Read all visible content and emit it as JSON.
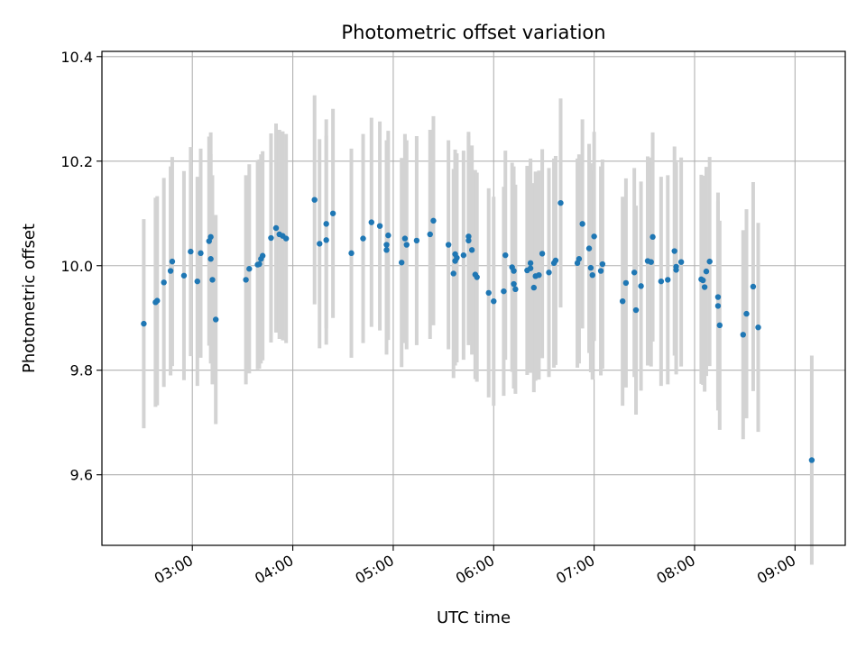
{
  "chart_data": {
    "type": "scatter",
    "title": "Photometric offset variation",
    "xlabel": "UTC time",
    "ylabel": "Photometric offset",
    "x_tick_labels": [
      "03:00",
      "04:00",
      "05:00",
      "06:00",
      "07:00",
      "08:00",
      "09:00"
    ],
    "x_tick_hours": [
      3,
      4,
      5,
      6,
      7,
      8,
      9
    ],
    "y_ticks": [
      9.6,
      9.8,
      10.0,
      10.2,
      10.4
    ],
    "y_tick_labels": [
      "9.6",
      "9.8",
      "10.0",
      "10.2",
      "10.4"
    ],
    "xlim_hours": [
      2.1,
      9.5
    ],
    "ylim": [
      9.465,
      10.41
    ],
    "grid": true,
    "x_tick_rotation_deg": 30,
    "colors": {
      "points": "#1f77b4",
      "errorbars": "#d3d3d3",
      "grid": "#b0b0b0",
      "axes": "#000000"
    },
    "series": [
      {
        "errorbar_halfwidth": 0.2,
        "points": [
          {
            "x": "02:31",
            "y": 9.889
          },
          {
            "x": "02:38",
            "y": 9.93
          },
          {
            "x": "02:39",
            "y": 9.933
          },
          {
            "x": "02:43",
            "y": 9.968
          },
          {
            "x": "02:47",
            "y": 9.99
          },
          {
            "x": "02:48",
            "y": 10.008
          },
          {
            "x": "02:55",
            "y": 9.981
          },
          {
            "x": "02:59",
            "y": 10.027
          },
          {
            "x": "03:03",
            "y": 9.97
          },
          {
            "x": "03:05",
            "y": 10.024
          },
          {
            "x": "03:10",
            "y": 10.047
          },
          {
            "x": "03:11",
            "y": 10.055
          },
          {
            "x": "03:11",
            "y": 10.013
          },
          {
            "x": "03:12",
            "y": 9.973
          },
          {
            "x": "03:14",
            "y": 9.897
          },
          {
            "x": "03:32",
            "y": 9.973
          },
          {
            "x": "03:34",
            "y": 9.994
          },
          {
            "x": "03:39",
            "y": 10.002
          },
          {
            "x": "03:40",
            "y": 10.003
          },
          {
            "x": "03:41",
            "y": 10.013
          },
          {
            "x": "03:42",
            "y": 10.019
          },
          {
            "x": "03:47",
            "y": 10.053
          },
          {
            "x": "03:50",
            "y": 10.072
          },
          {
            "x": "03:52",
            "y": 10.06
          },
          {
            "x": "03:54",
            "y": 10.057
          },
          {
            "x": "03:56",
            "y": 10.052
          },
          {
            "x": "04:13",
            "y": 10.126
          },
          {
            "x": "04:16",
            "y": 10.042
          },
          {
            "x": "04:20",
            "y": 10.049
          },
          {
            "x": "04:20",
            "y": 10.08
          },
          {
            "x": "04:24",
            "y": 10.1
          },
          {
            "x": "04:35",
            "y": 10.024
          },
          {
            "x": "04:42",
            "y": 10.052
          },
          {
            "x": "04:47",
            "y": 10.083
          },
          {
            "x": "04:52",
            "y": 10.076
          },
          {
            "x": "04:56",
            "y": 10.04
          },
          {
            "x": "04:56",
            "y": 10.03
          },
          {
            "x": "04:57",
            "y": 10.058
          },
          {
            "x": "05:05",
            "y": 10.006
          },
          {
            "x": "05:07",
            "y": 10.052
          },
          {
            "x": "05:08",
            "y": 10.04
          },
          {
            "x": "05:14",
            "y": 10.048
          },
          {
            "x": "05:22",
            "y": 10.06
          },
          {
            "x": "05:24",
            "y": 10.086
          },
          {
            "x": "05:33",
            "y": 10.04
          },
          {
            "x": "05:36",
            "y": 9.985
          },
          {
            "x": "05:37",
            "y": 10.009
          },
          {
            "x": "05:37",
            "y": 10.022
          },
          {
            "x": "05:38",
            "y": 10.015
          },
          {
            "x": "05:42",
            "y": 10.02
          },
          {
            "x": "05:45",
            "y": 10.056
          },
          {
            "x": "05:45",
            "y": 10.048
          },
          {
            "x": "05:47",
            "y": 10.03
          },
          {
            "x": "05:49",
            "y": 9.983
          },
          {
            "x": "05:50",
            "y": 9.978
          },
          {
            "x": "05:57",
            "y": 9.948
          },
          {
            "x": "06:00",
            "y": 9.932
          },
          {
            "x": "06:06",
            "y": 9.951
          },
          {
            "x": "06:07",
            "y": 10.02
          },
          {
            "x": "06:11",
            "y": 9.997
          },
          {
            "x": "06:12",
            "y": 9.99
          },
          {
            "x": "06:12",
            "y": 9.965
          },
          {
            "x": "06:13",
            "y": 9.955
          },
          {
            "x": "06:20",
            "y": 9.991
          },
          {
            "x": "06:22",
            "y": 9.995
          },
          {
            "x": "06:22",
            "y": 10.005
          },
          {
            "x": "06:24",
            "y": 9.958
          },
          {
            "x": "06:25",
            "y": 9.98
          },
          {
            "x": "06:27",
            "y": 9.982
          },
          {
            "x": "06:29",
            "y": 10.023
          },
          {
            "x": "06:33",
            "y": 9.987
          },
          {
            "x": "06:36",
            "y": 10.005
          },
          {
            "x": "06:37",
            "y": 10.01
          },
          {
            "x": "06:40",
            "y": 10.12
          },
          {
            "x": "06:50",
            "y": 10.005
          },
          {
            "x": "06:51",
            "y": 10.013
          },
          {
            "x": "06:53",
            "y": 10.08
          },
          {
            "x": "06:57",
            "y": 10.033
          },
          {
            "x": "06:58",
            "y": 9.996
          },
          {
            "x": "06:59",
            "y": 9.982
          },
          {
            "x": "07:00",
            "y": 10.056
          },
          {
            "x": "07:04",
            "y": 9.99
          },
          {
            "x": "07:05",
            "y": 10.003
          },
          {
            "x": "07:17",
            "y": 9.932
          },
          {
            "x": "07:19",
            "y": 9.967
          },
          {
            "x": "07:24",
            "y": 9.987
          },
          {
            "x": "07:25",
            "y": 9.915
          },
          {
            "x": "07:28",
            "y": 9.961
          },
          {
            "x": "07:32",
            "y": 10.009
          },
          {
            "x": "07:34",
            "y": 10.007
          },
          {
            "x": "07:35",
            "y": 10.055
          },
          {
            "x": "07:40",
            "y": 9.97
          },
          {
            "x": "07:44",
            "y": 9.973
          },
          {
            "x": "07:48",
            "y": 10.028
          },
          {
            "x": "07:49",
            "y": 9.992
          },
          {
            "x": "07:49",
            "y": 9.998
          },
          {
            "x": "07:52",
            "y": 10.007
          },
          {
            "x": "08:04",
            "y": 9.974
          },
          {
            "x": "08:05",
            "y": 9.972
          },
          {
            "x": "08:06",
            "y": 9.959
          },
          {
            "x": "08:07",
            "y": 9.989
          },
          {
            "x": "08:09",
            "y": 10.008
          },
          {
            "x": "08:14",
            "y": 9.94
          },
          {
            "x": "08:14",
            "y": 9.923
          },
          {
            "x": "08:15",
            "y": 9.886
          },
          {
            "x": "08:29",
            "y": 9.868
          },
          {
            "x": "08:31",
            "y": 9.908
          },
          {
            "x": "08:35",
            "y": 9.96
          },
          {
            "x": "08:38",
            "y": 9.882
          },
          {
            "x": "09:10",
            "y": 9.628
          }
        ]
      }
    ]
  }
}
